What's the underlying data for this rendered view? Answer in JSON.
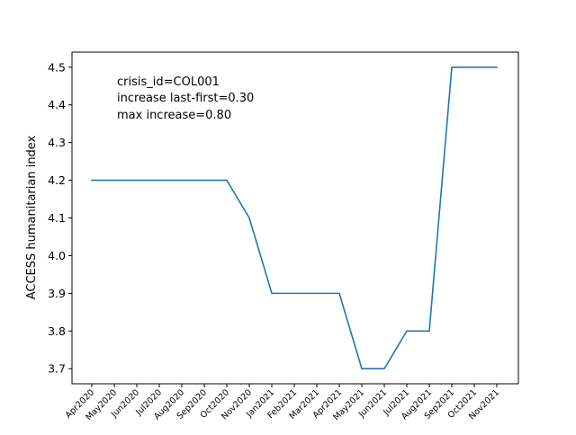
{
  "chart_data": {
    "type": "line",
    "title": "",
    "xlabel": "",
    "ylabel": "ACCESS humanitarian index",
    "x": [
      "Apr2020",
      "May2020",
      "Jun2020",
      "Jul2020",
      "Aug2020",
      "Sep2020",
      "Oct2020",
      "Nov2020",
      "Jan2021",
      "Feb2021",
      "Mar2021",
      "Apr2021",
      "May2021",
      "Jun2021",
      "Jul2021",
      "Aug2021",
      "Sep2021",
      "Oct2021",
      "Nov2021"
    ],
    "series": [
      {
        "values": [
          4.2,
          4.2,
          4.2,
          4.2,
          4.2,
          4.2,
          4.2,
          4.1,
          3.9,
          3.9,
          3.9,
          3.9,
          3.7,
          3.7,
          3.8,
          3.8,
          4.5,
          4.5,
          4.5
        ],
        "color": "#1f77b4"
      }
    ],
    "yticks": [
      "3.7",
      "3.8",
      "3.9",
      "4.0",
      "4.1",
      "4.2",
      "4.3",
      "4.4",
      "4.5"
    ],
    "ylim": [
      3.66,
      4.54
    ],
    "grid": false,
    "annotations": [
      "crisis_id=COL001",
      "increase last-first=0.30",
      "max increase=0.80"
    ]
  }
}
